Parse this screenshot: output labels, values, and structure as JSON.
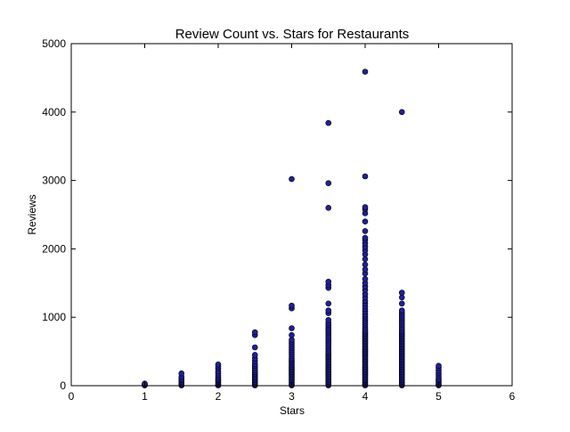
{
  "chart_data": {
    "type": "scatter",
    "title": "Review Count vs. Stars for Restaurants",
    "xlabel": "Stars",
    "ylabel": "Reviews",
    "xlim": [
      0,
      6
    ],
    "ylim": [
      0,
      5000
    ],
    "xticks": [
      "0",
      "1",
      "2",
      "3",
      "4",
      "5",
      "6"
    ],
    "yticks": [
      "0",
      "1000",
      "2000",
      "3000",
      "4000",
      "5000"
    ],
    "grid": false,
    "legend": "none",
    "marker_color": "#1f1f9e",
    "marker_edge": "#000000",
    "series": [
      {
        "points": [
          [
            1,
            5
          ],
          [
            1,
            12
          ],
          [
            1,
            20
          ],
          [
            1,
            30
          ],
          [
            1.5,
            5
          ],
          [
            1.5,
            20
          ],
          [
            1.5,
            40
          ],
          [
            1.5,
            60
          ],
          [
            1.5,
            80
          ],
          [
            1.5,
            100
          ],
          [
            1.5,
            130
          ],
          [
            1.5,
            180
          ],
          [
            2,
            5
          ],
          [
            2,
            20
          ],
          [
            2,
            40
          ],
          [
            2,
            60
          ],
          [
            2,
            80
          ],
          [
            2,
            100
          ],
          [
            2,
            120
          ],
          [
            2,
            150
          ],
          [
            2,
            180
          ],
          [
            2,
            210
          ],
          [
            2,
            250
          ],
          [
            2,
            280
          ],
          [
            2,
            310
          ],
          [
            2.5,
            5
          ],
          [
            2.5,
            20
          ],
          [
            2.5,
            40
          ],
          [
            2.5,
            60
          ],
          [
            2.5,
            80
          ],
          [
            2.5,
            100
          ],
          [
            2.5,
            120
          ],
          [
            2.5,
            140
          ],
          [
            2.5,
            160
          ],
          [
            2.5,
            180
          ],
          [
            2.5,
            200
          ],
          [
            2.5,
            230
          ],
          [
            2.5,
            260
          ],
          [
            2.5,
            290
          ],
          [
            2.5,
            320
          ],
          [
            2.5,
            360
          ],
          [
            2.5,
            400
          ],
          [
            2.5,
            450
          ],
          [
            2.5,
            560
          ],
          [
            2.5,
            740
          ],
          [
            2.5,
            780
          ],
          [
            3,
            5
          ],
          [
            3,
            20
          ],
          [
            3,
            40
          ],
          [
            3,
            60
          ],
          [
            3,
            80
          ],
          [
            3,
            100
          ],
          [
            3,
            120
          ],
          [
            3,
            140
          ],
          [
            3,
            160
          ],
          [
            3,
            180
          ],
          [
            3,
            200
          ],
          [
            3,
            220
          ],
          [
            3,
            240
          ],
          [
            3,
            260
          ],
          [
            3,
            280
          ],
          [
            3,
            300
          ],
          [
            3,
            320
          ],
          [
            3,
            340
          ],
          [
            3,
            360
          ],
          [
            3,
            380
          ],
          [
            3,
            400
          ],
          [
            3,
            430
          ],
          [
            3,
            460
          ],
          [
            3,
            490
          ],
          [
            3,
            520
          ],
          [
            3,
            550
          ],
          [
            3,
            580
          ],
          [
            3,
            610
          ],
          [
            3,
            640
          ],
          [
            3,
            670
          ],
          [
            3,
            740
          ],
          [
            3,
            840
          ],
          [
            3,
            1130
          ],
          [
            3,
            1170
          ],
          [
            3,
            3020
          ],
          [
            3.5,
            5
          ],
          [
            3.5,
            20
          ],
          [
            3.5,
            40
          ],
          [
            3.5,
            60
          ],
          [
            3.5,
            80
          ],
          [
            3.5,
            100
          ],
          [
            3.5,
            120
          ],
          [
            3.5,
            140
          ],
          [
            3.5,
            160
          ],
          [
            3.5,
            180
          ],
          [
            3.5,
            200
          ],
          [
            3.5,
            220
          ],
          [
            3.5,
            240
          ],
          [
            3.5,
            260
          ],
          [
            3.5,
            280
          ],
          [
            3.5,
            300
          ],
          [
            3.5,
            320
          ],
          [
            3.5,
            340
          ],
          [
            3.5,
            360
          ],
          [
            3.5,
            380
          ],
          [
            3.5,
            400
          ],
          [
            3.5,
            420
          ],
          [
            3.5,
            440
          ],
          [
            3.5,
            460
          ],
          [
            3.5,
            480
          ],
          [
            3.5,
            500
          ],
          [
            3.5,
            530
          ],
          [
            3.5,
            560
          ],
          [
            3.5,
            590
          ],
          [
            3.5,
            620
          ],
          [
            3.5,
            650
          ],
          [
            3.5,
            680
          ],
          [
            3.5,
            710
          ],
          [
            3.5,
            740
          ],
          [
            3.5,
            770
          ],
          [
            3.5,
            800
          ],
          [
            3.5,
            830
          ],
          [
            3.5,
            860
          ],
          [
            3.5,
            890
          ],
          [
            3.5,
            920
          ],
          [
            3.5,
            960
          ],
          [
            3.5,
            1060
          ],
          [
            3.5,
            1100
          ],
          [
            3.5,
            1200
          ],
          [
            3.5,
            1430
          ],
          [
            3.5,
            1470
          ],
          [
            3.5,
            1520
          ],
          [
            3.5,
            2600
          ],
          [
            3.5,
            2960
          ],
          [
            3.5,
            3840
          ],
          [
            4,
            5
          ],
          [
            4,
            20
          ],
          [
            4,
            40
          ],
          [
            4,
            60
          ],
          [
            4,
            80
          ],
          [
            4,
            100
          ],
          [
            4,
            120
          ],
          [
            4,
            140
          ],
          [
            4,
            160
          ],
          [
            4,
            180
          ],
          [
            4,
            200
          ],
          [
            4,
            220
          ],
          [
            4,
            240
          ],
          [
            4,
            260
          ],
          [
            4,
            280
          ],
          [
            4,
            300
          ],
          [
            4,
            320
          ],
          [
            4,
            340
          ],
          [
            4,
            360
          ],
          [
            4,
            380
          ],
          [
            4,
            400
          ],
          [
            4,
            420
          ],
          [
            4,
            440
          ],
          [
            4,
            460
          ],
          [
            4,
            480
          ],
          [
            4,
            500
          ],
          [
            4,
            520
          ],
          [
            4,
            540
          ],
          [
            4,
            560
          ],
          [
            4,
            580
          ],
          [
            4,
            600
          ],
          [
            4,
            620
          ],
          [
            4,
            640
          ],
          [
            4,
            660
          ],
          [
            4,
            680
          ],
          [
            4,
            700
          ],
          [
            4,
            720
          ],
          [
            4,
            740
          ],
          [
            4,
            760
          ],
          [
            4,
            780
          ],
          [
            4,
            800
          ],
          [
            4,
            830
          ],
          [
            4,
            860
          ],
          [
            4,
            890
          ],
          [
            4,
            920
          ],
          [
            4,
            950
          ],
          [
            4,
            980
          ],
          [
            4,
            1010
          ],
          [
            4,
            1040
          ],
          [
            4,
            1080
          ],
          [
            4,
            1120
          ],
          [
            4,
            1160
          ],
          [
            4,
            1200
          ],
          [
            4,
            1240
          ],
          [
            4,
            1290
          ],
          [
            4,
            1340
          ],
          [
            4,
            1400
          ],
          [
            4,
            1450
          ],
          [
            4,
            1500
          ],
          [
            4,
            1560
          ],
          [
            4,
            1640
          ],
          [
            4,
            1700
          ],
          [
            4,
            1770
          ],
          [
            4,
            1850
          ],
          [
            4,
            1920
          ],
          [
            4,
            1980
          ],
          [
            4,
            2030
          ],
          [
            4,
            2080
          ],
          [
            4,
            2130
          ],
          [
            4,
            2160
          ],
          [
            4,
            2260
          ],
          [
            4,
            2400
          ],
          [
            4,
            2520
          ],
          [
            4,
            2580
          ],
          [
            4,
            2610
          ],
          [
            4,
            3060
          ],
          [
            4,
            4590
          ],
          [
            4.5,
            5
          ],
          [
            4.5,
            20
          ],
          [
            4.5,
            40
          ],
          [
            4.5,
            60
          ],
          [
            4.5,
            80
          ],
          [
            4.5,
            100
          ],
          [
            4.5,
            120
          ],
          [
            4.5,
            140
          ],
          [
            4.5,
            160
          ],
          [
            4.5,
            180
          ],
          [
            4.5,
            200
          ],
          [
            4.5,
            220
          ],
          [
            4.5,
            240
          ],
          [
            4.5,
            260
          ],
          [
            4.5,
            280
          ],
          [
            4.5,
            300
          ],
          [
            4.5,
            320
          ],
          [
            4.5,
            340
          ],
          [
            4.5,
            360
          ],
          [
            4.5,
            380
          ],
          [
            4.5,
            400
          ],
          [
            4.5,
            420
          ],
          [
            4.5,
            440
          ],
          [
            4.5,
            460
          ],
          [
            4.5,
            480
          ],
          [
            4.5,
            500
          ],
          [
            4.5,
            520
          ],
          [
            4.5,
            540
          ],
          [
            4.5,
            560
          ],
          [
            4.5,
            580
          ],
          [
            4.5,
            600
          ],
          [
            4.5,
            620
          ],
          [
            4.5,
            640
          ],
          [
            4.5,
            660
          ],
          [
            4.5,
            680
          ],
          [
            4.5,
            700
          ],
          [
            4.5,
            720
          ],
          [
            4.5,
            740
          ],
          [
            4.5,
            760
          ],
          [
            4.5,
            780
          ],
          [
            4.5,
            800
          ],
          [
            4.5,
            830
          ],
          [
            4.5,
            860
          ],
          [
            4.5,
            890
          ],
          [
            4.5,
            920
          ],
          [
            4.5,
            950
          ],
          [
            4.5,
            980
          ],
          [
            4.5,
            1010
          ],
          [
            4.5,
            1040
          ],
          [
            4.5,
            1070
          ],
          [
            4.5,
            1100
          ],
          [
            4.5,
            1200
          ],
          [
            4.5,
            1290
          ],
          [
            4.5,
            1360
          ],
          [
            4.5,
            4000
          ],
          [
            5,
            5
          ],
          [
            5,
            20
          ],
          [
            5,
            40
          ],
          [
            5,
            60
          ],
          [
            5,
            80
          ],
          [
            5,
            100
          ],
          [
            5,
            130
          ],
          [
            5,
            160
          ],
          [
            5,
            190
          ],
          [
            5,
            220
          ],
          [
            5,
            260
          ],
          [
            5,
            290
          ]
        ]
      }
    ]
  }
}
